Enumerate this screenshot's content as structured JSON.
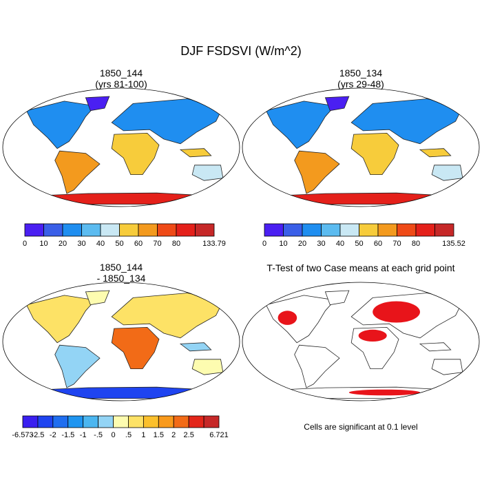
{
  "figure": {
    "title": "DJF FSDSVI (W/m^2)",
    "footnote": "Cells are significant at 0.1 level"
  },
  "chart_data": [
    {
      "type": "heatmap",
      "title": "1850_144",
      "subtitle": "(yrs 81-100)",
      "colorbar_ticks": [
        "0",
        "10",
        "20",
        "30",
        "40",
        "50",
        "60",
        "70",
        "80",
        "133.79"
      ],
      "colorbar_colors": [
        "#4a1ff2",
        "#3a5fe8",
        "#1f8ef0",
        "#5bbbf0",
        "#c9e8f4",
        "#f7cc3b",
        "#f39a1e",
        "#ef4a17",
        "#e4201a",
        "#c62828"
      ],
      "range": [
        0,
        133.79
      ]
    },
    {
      "type": "heatmap",
      "title": "1850_134",
      "subtitle": "(yrs 29-48)",
      "colorbar_ticks": [
        "0",
        "10",
        "20",
        "30",
        "40",
        "50",
        "60",
        "70",
        "80",
        "135.52"
      ],
      "colorbar_colors": [
        "#4a1ff2",
        "#3a5fe8",
        "#1f8ef0",
        "#5bbbf0",
        "#c9e8f4",
        "#f7cc3b",
        "#f39a1e",
        "#ef4a17",
        "#e4201a",
        "#c62828"
      ],
      "range": [
        0,
        135.52
      ]
    },
    {
      "type": "heatmap",
      "title": "1850_144",
      "subtitle": "- 1850_134",
      "colorbar_ticks": [
        "-6.573",
        "-2.5",
        "-2",
        "-1.5",
        "-1",
        "-.5",
        "0",
        ".5",
        "1",
        "1.5",
        "2",
        "2.5",
        "6.721"
      ],
      "colorbar_colors": [
        "#3a1ff0",
        "#1f44f0",
        "#1f6ef0",
        "#1f95f0",
        "#4bb6f0",
        "#93d4f5",
        "#fdfcb0",
        "#fde266",
        "#fbc02d",
        "#f99a1c",
        "#f26b17",
        "#e3261a",
        "#c62828"
      ],
      "range": [
        -6.573,
        6.721
      ]
    },
    {
      "type": "heatmap",
      "title": "T-Test of two Case means at each grid point",
      "subtitle": "",
      "colorbar_ticks": [],
      "colorbar_colors": [
        "#e8141a"
      ]
    }
  ]
}
